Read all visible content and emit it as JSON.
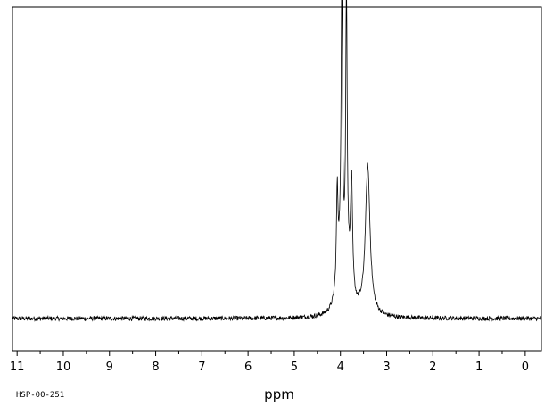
{
  "chart_data": {
    "type": "line",
    "title": "",
    "xlabel": "ppm",
    "ylabel": "",
    "xlim": [
      11.1,
      -0.35
    ],
    "x_reversed": true,
    "ylim": [
      -0.15,
      1.05
    ],
    "grid": false,
    "legend": "none",
    "tick_labels": [
      "11",
      "10",
      "9",
      "8",
      "7",
      "6",
      "5",
      "4",
      "3",
      "2",
      "1",
      "0"
    ],
    "ticks": [
      11,
      10,
      9,
      8,
      7,
      6,
      5,
      4,
      3,
      2,
      1,
      0
    ],
    "noise_amplitude": 0.008,
    "baseline": 0.0,
    "peaks": [
      {
        "center": 4.07,
        "height": 0.33,
        "width": 0.02
      },
      {
        "center": 3.97,
        "height": 0.98,
        "width": 0.018
      },
      {
        "center": 3.87,
        "height": 0.99,
        "width": 0.018
      },
      {
        "center": 3.76,
        "height": 0.4,
        "width": 0.025
      },
      {
        "center": 3.41,
        "height": 0.53,
        "width": 0.06
      },
      {
        "center": 4.0,
        "height": 0.18,
        "width": 0.08
      },
      {
        "center": 3.85,
        "height": 0.12,
        "width": 0.1
      }
    ],
    "line_color": "#000000"
  },
  "footer": {
    "code": "HSP-00-251"
  }
}
